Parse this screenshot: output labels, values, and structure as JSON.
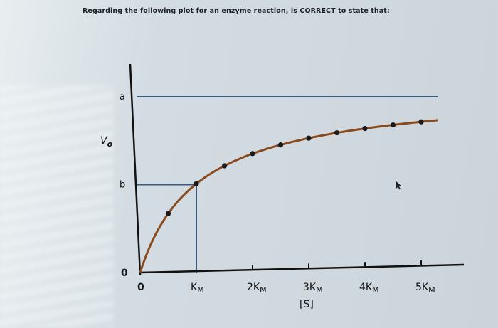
{
  "question": "Regarding the following plot for an enzyme reaction, is CORRECT to state that:",
  "chart_data": {
    "type": "scatter",
    "title": "",
    "xlabel": "[S]",
    "ylabel": "V",
    "ylabel_sub": "o",
    "x_unit": "K_M",
    "y_unit": "fraction of a (Vmax)",
    "xlim": [
      0,
      5.6
    ],
    "ylim": [
      0,
      1.15
    ],
    "x_ticks": [
      {
        "value": 0,
        "label": "0",
        "sub": ""
      },
      {
        "value": 1,
        "label": "K",
        "sub": "M"
      },
      {
        "value": 2,
        "label": "2K",
        "sub": "M"
      },
      {
        "value": 3,
        "label": "3K",
        "sub": "M"
      },
      {
        "value": 4,
        "label": "4K",
        "sub": "M"
      },
      {
        "value": 5,
        "label": "5K",
        "sub": "M"
      }
    ],
    "y_ticks": [
      {
        "value": 0,
        "label": "0"
      },
      {
        "value": 0.5,
        "label": "b"
      },
      {
        "value": 1,
        "label": "a"
      }
    ],
    "points": [
      {
        "x": 0.5,
        "y": 0.333
      },
      {
        "x": 1,
        "y": 0.5
      },
      {
        "x": 1.5,
        "y": 0.6
      },
      {
        "x": 2,
        "y": 0.667
      },
      {
        "x": 2.5,
        "y": 0.714
      },
      {
        "x": 3,
        "y": 0.75
      },
      {
        "x": 3.5,
        "y": 0.778
      },
      {
        "x": 4,
        "y": 0.8
      },
      {
        "x": 4.5,
        "y": 0.818
      },
      {
        "x": 5,
        "y": 0.833
      }
    ],
    "curve": {
      "model": "v = a*[S]/(K_M+[S])",
      "x_max": 5.3
    },
    "asymptote_y": 1,
    "half_max_guide": {
      "x": 1,
      "y": 0.5
    },
    "grid": false,
    "colors": {
      "curve": "#8a4a1c",
      "guides": "#3b5a80",
      "axes": "#111111",
      "points": "#1a1a1a"
    }
  }
}
